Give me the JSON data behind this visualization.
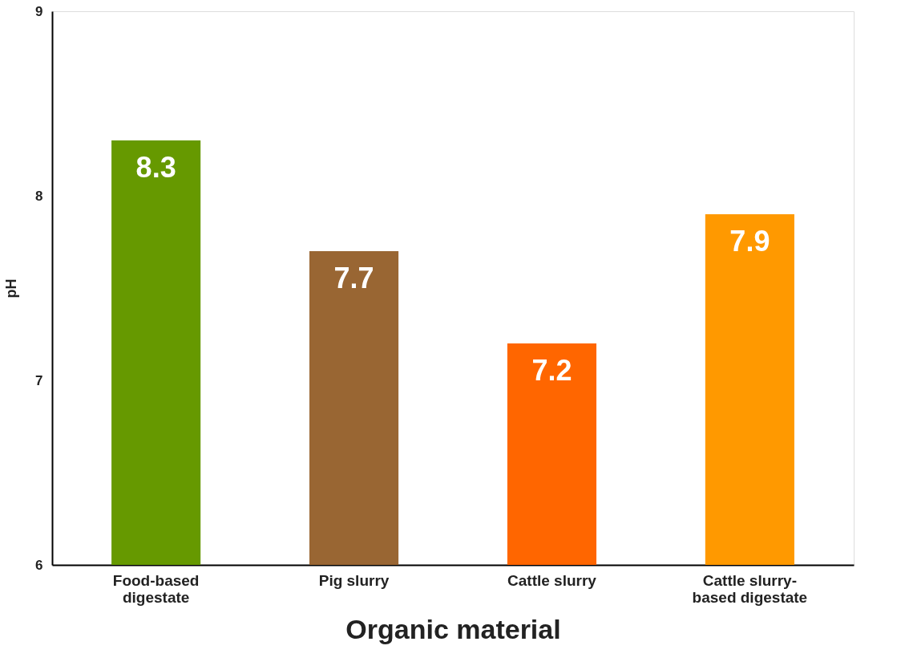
{
  "chart_data": {
    "type": "bar",
    "xlabel": "Organic material",
    "ylabel": "pH",
    "categories": [
      "Food-based digestate",
      "Pig slurry",
      "Cattle slurry",
      "Cattle slurry-based digestate"
    ],
    "values": [
      8.3,
      7.7,
      7.2,
      7.9
    ],
    "colors": [
      "#669900",
      "#996633",
      "#ff6600",
      "#ff9900"
    ],
    "ylim": [
      6,
      9
    ],
    "yticks": [
      6,
      7,
      8,
      9
    ],
    "grid": false,
    "data_labels": true
  }
}
